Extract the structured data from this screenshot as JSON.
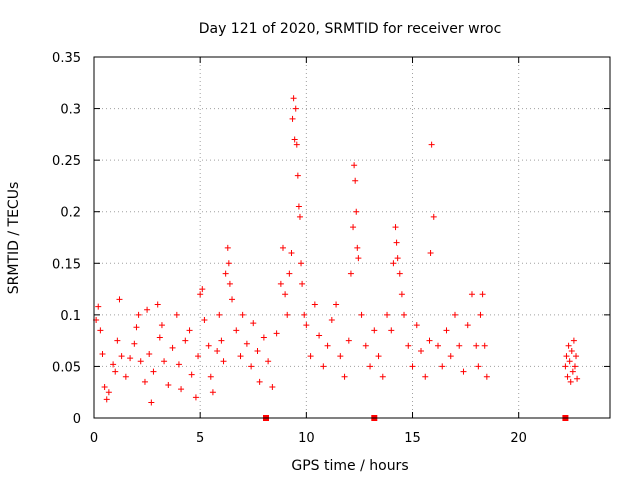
{
  "chart_data": {
    "type": "scatter",
    "title": "Day 121 of 2020, SRMTID for receiver wroc",
    "xlabel": "GPS time / hours",
    "ylabel": "SRMTID / TECUs",
    "xlim": [
      0,
      24.3
    ],
    "ylim": [
      0,
      0.35
    ],
    "xticks": [
      0,
      5,
      10,
      15,
      20
    ],
    "yticks": [
      0,
      0.05,
      0.1,
      0.15,
      0.2,
      0.25,
      0.3,
      0.35
    ],
    "xtick_labels": [
      "0",
      "5",
      "10",
      "15",
      "20"
    ],
    "ytick_labels": [
      "0",
      "0.05",
      "0.1",
      "0.15",
      "0.2",
      "0.25",
      "0.3",
      "0.35"
    ],
    "grid": true,
    "marker": "plus",
    "series": [
      {
        "name": "SRMTID",
        "color": "#ff0000",
        "points": [
          [
            0.1,
            0.095
          ],
          [
            0.2,
            0.108
          ],
          [
            0.3,
            0.085
          ],
          [
            0.4,
            0.062
          ],
          [
            0.5,
            0.03
          ],
          [
            0.6,
            0.018
          ],
          [
            0.7,
            0.025
          ],
          [
            0.9,
            0.052
          ],
          [
            1.0,
            0.045
          ],
          [
            1.1,
            0.075
          ],
          [
            1.2,
            0.115
          ],
          [
            1.3,
            0.06
          ],
          [
            1.5,
            0.04
          ],
          [
            1.7,
            0.058
          ],
          [
            1.9,
            0.072
          ],
          [
            2.0,
            0.088
          ],
          [
            2.1,
            0.1
          ],
          [
            2.2,
            0.055
          ],
          [
            2.4,
            0.035
          ],
          [
            2.5,
            0.105
          ],
          [
            2.6,
            0.062
          ],
          [
            2.7,
            0.015
          ],
          [
            2.8,
            0.045
          ],
          [
            3.0,
            0.11
          ],
          [
            3.1,
            0.078
          ],
          [
            3.2,
            0.09
          ],
          [
            3.3,
            0.055
          ],
          [
            3.5,
            0.032
          ],
          [
            3.7,
            0.068
          ],
          [
            3.9,
            0.1
          ],
          [
            4.0,
            0.052
          ],
          [
            4.1,
            0.028
          ],
          [
            4.3,
            0.075
          ],
          [
            4.5,
            0.085
          ],
          [
            4.6,
            0.042
          ],
          [
            4.8,
            0.02
          ],
          [
            4.9,
            0.06
          ],
          [
            5.0,
            0.12
          ],
          [
            5.1,
            0.125
          ],
          [
            5.2,
            0.095
          ],
          [
            5.4,
            0.07
          ],
          [
            5.5,
            0.04
          ],
          [
            5.6,
            0.025
          ],
          [
            5.8,
            0.065
          ],
          [
            5.9,
            0.1
          ],
          [
            6.0,
            0.075
          ],
          [
            6.1,
            0.055
          ],
          [
            6.2,
            0.14
          ],
          [
            6.3,
            0.165
          ],
          [
            6.35,
            0.15
          ],
          [
            6.4,
            0.13
          ],
          [
            6.5,
            0.115
          ],
          [
            6.7,
            0.085
          ],
          [
            6.9,
            0.06
          ],
          [
            7.0,
            0.1
          ],
          [
            7.2,
            0.072
          ],
          [
            7.4,
            0.05
          ],
          [
            7.5,
            0.092
          ],
          [
            7.7,
            0.065
          ],
          [
            7.8,
            0.035
          ],
          [
            8.0,
            0.078
          ],
          [
            8.2,
            0.055
          ],
          [
            8.4,
            0.03
          ],
          [
            8.6,
            0.082
          ],
          [
            8.8,
            0.13
          ],
          [
            8.9,
            0.165
          ],
          [
            9.0,
            0.12
          ],
          [
            9.1,
            0.1
          ],
          [
            9.2,
            0.14
          ],
          [
            9.3,
            0.16
          ],
          [
            9.35,
            0.29
          ],
          [
            9.4,
            0.31
          ],
          [
            9.45,
            0.27
          ],
          [
            9.5,
            0.3
          ],
          [
            9.55,
            0.265
          ],
          [
            9.6,
            0.235
          ],
          [
            9.65,
            0.205
          ],
          [
            9.7,
            0.195
          ],
          [
            9.75,
            0.15
          ],
          [
            9.8,
            0.13
          ],
          [
            9.9,
            0.1
          ],
          [
            10.0,
            0.09
          ],
          [
            10.2,
            0.06
          ],
          [
            10.4,
            0.11
          ],
          [
            10.6,
            0.08
          ],
          [
            10.8,
            0.05
          ],
          [
            11.0,
            0.07
          ],
          [
            11.2,
            0.095
          ],
          [
            11.4,
            0.11
          ],
          [
            11.6,
            0.06
          ],
          [
            11.8,
            0.04
          ],
          [
            12.0,
            0.075
          ],
          [
            12.1,
            0.14
          ],
          [
            12.2,
            0.185
          ],
          [
            12.25,
            0.245
          ],
          [
            12.3,
            0.23
          ],
          [
            12.35,
            0.2
          ],
          [
            12.4,
            0.165
          ],
          [
            12.45,
            0.155
          ],
          [
            12.6,
            0.1
          ],
          [
            12.8,
            0.07
          ],
          [
            13.0,
            0.05
          ],
          [
            13.2,
            0.085
          ],
          [
            13.4,
            0.06
          ],
          [
            13.6,
            0.04
          ],
          [
            13.8,
            0.1
          ],
          [
            14.0,
            0.085
          ],
          [
            14.1,
            0.15
          ],
          [
            14.2,
            0.185
          ],
          [
            14.25,
            0.17
          ],
          [
            14.3,
            0.155
          ],
          [
            14.4,
            0.14
          ],
          [
            14.5,
            0.12
          ],
          [
            14.6,
            0.1
          ],
          [
            14.8,
            0.07
          ],
          [
            15.0,
            0.05
          ],
          [
            15.2,
            0.09
          ],
          [
            15.4,
            0.065
          ],
          [
            15.6,
            0.04
          ],
          [
            15.8,
            0.075
          ],
          [
            15.85,
            0.16
          ],
          [
            15.9,
            0.265
          ],
          [
            16.0,
            0.195
          ],
          [
            16.2,
            0.07
          ],
          [
            16.4,
            0.05
          ],
          [
            16.6,
            0.085
          ],
          [
            16.8,
            0.06
          ],
          [
            17.0,
            0.1
          ],
          [
            17.2,
            0.07
          ],
          [
            17.4,
            0.045
          ],
          [
            17.6,
            0.09
          ],
          [
            17.8,
            0.12
          ],
          [
            18.0,
            0.07
          ],
          [
            18.1,
            0.05
          ],
          [
            18.2,
            0.1
          ],
          [
            18.3,
            0.12
          ],
          [
            18.4,
            0.07
          ],
          [
            18.5,
            0.04
          ],
          [
            22.2,
            0.05
          ],
          [
            22.25,
            0.06
          ],
          [
            22.3,
            0.04
          ],
          [
            22.35,
            0.07
          ],
          [
            22.4,
            0.055
          ],
          [
            22.45,
            0.035
          ],
          [
            22.5,
            0.065
          ],
          [
            22.55,
            0.045
          ],
          [
            22.6,
            0.075
          ],
          [
            22.65,
            0.05
          ],
          [
            22.7,
            0.06
          ],
          [
            22.75,
            0.038
          ]
        ]
      }
    ],
    "zero_markers_x": [
      8.1,
      13.2,
      22.2
    ]
  }
}
